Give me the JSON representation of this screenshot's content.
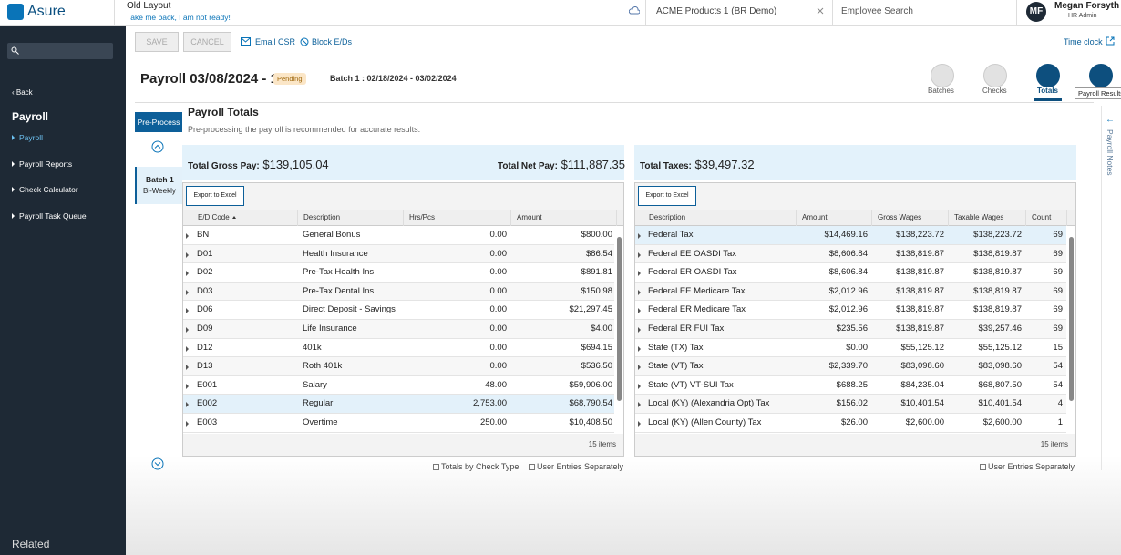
{
  "topbar": {
    "brand": "Asure",
    "old_layout": "Old Layout",
    "take_back": "Take me back, I am not ready!",
    "company": "ACME Products 1 (BR Demo)",
    "search": "Employee Search",
    "initials": "MF",
    "user": "Megan Forsyth",
    "role": "HR Admin"
  },
  "sidebar": {
    "back": "Back",
    "section": "Payroll",
    "items": [
      "Payroll",
      "Payroll Reports",
      "Check Calculator",
      "Payroll Task Queue"
    ],
    "related": "Related"
  },
  "toolbar": {
    "save": "SAVE",
    "cancel": "CANCEL",
    "email": "Email CSR",
    "block": "Block E/Ds",
    "timeclock": "Time clock"
  },
  "header": {
    "title": "Payroll 03/08/2024 - 1",
    "status": "Pending",
    "batch": "Batch 1 : 02/18/2024 - 03/02/2024",
    "tabs": [
      "Batches",
      "Checks",
      "Totals"
    ],
    "tooltip": "Payroll Results"
  },
  "left": {
    "preprocess": "Pre-Process",
    "batch": "Batch 1",
    "frequency": "Bi-Weekly"
  },
  "totals": {
    "title": "Payroll Totals",
    "note": "Pre-processing the payroll is recommended for accurate results.",
    "gross_label": "Total Gross Pay:",
    "gross": "$139,105.04",
    "net_label": "Total Net Pay:",
    "net": "$111,887.35",
    "tax_label": "Total Taxes:",
    "tax": "$39,497.32"
  },
  "ed_table": {
    "export": "Export to Excel",
    "columns": [
      "E/D Code",
      "Description",
      "Hrs/Pcs",
      "Amount"
    ],
    "rows": [
      [
        "BN",
        "General Bonus",
        "0.00",
        "$800.00"
      ],
      [
        "D01",
        "Health Insurance",
        "0.00",
        "$86.54"
      ],
      [
        "D02",
        "Pre-Tax Health Ins",
        "0.00",
        "$891.81"
      ],
      [
        "D03",
        "Pre-Tax Dental Ins",
        "0.00",
        "$150.98"
      ],
      [
        "D06",
        "Direct Deposit - Savings",
        "0.00",
        "$21,297.45"
      ],
      [
        "D09",
        "Life Insurance",
        "0.00",
        "$4.00"
      ],
      [
        "D12",
        "401k",
        "0.00",
        "$694.15"
      ],
      [
        "D13",
        "Roth 401k",
        "0.00",
        "$536.50"
      ],
      [
        "E001",
        "Salary",
        "48.00",
        "$59,906.00"
      ],
      [
        "E002",
        "Regular",
        "2,753.00",
        "$68,790.54"
      ],
      [
        "E003",
        "Overtime",
        "250.00",
        "$10,408.50"
      ]
    ],
    "footer": "15 items",
    "options": [
      "Totals by Check Type",
      "User Entries Separately"
    ]
  },
  "tax_table": {
    "export": "Export to Excel",
    "columns": [
      "Description",
      "Amount",
      "Gross Wages",
      "Taxable Wages",
      "Count"
    ],
    "rows": [
      [
        "Federal Tax",
        "$14,469.16",
        "$138,223.72",
        "$138,223.72",
        "69"
      ],
      [
        "Federal EE OASDI Tax",
        "$8,606.84",
        "$138,819.87",
        "$138,819.87",
        "69"
      ],
      [
        "Federal ER OASDI Tax",
        "$8,606.84",
        "$138,819.87",
        "$138,819.87",
        "69"
      ],
      [
        "Federal EE Medicare Tax",
        "$2,012.96",
        "$138,819.87",
        "$138,819.87",
        "69"
      ],
      [
        "Federal ER Medicare Tax",
        "$2,012.96",
        "$138,819.87",
        "$138,819.87",
        "69"
      ],
      [
        "Federal ER FUI Tax",
        "$235.56",
        "$138,819.87",
        "$39,257.46",
        "69"
      ],
      [
        "State (TX) Tax",
        "$0.00",
        "$55,125.12",
        "$55,125.12",
        "15"
      ],
      [
        "State (VT) Tax",
        "$2,339.70",
        "$83,098.60",
        "$83,098.60",
        "54"
      ],
      [
        "State (VT) VT-SUI Tax",
        "$688.25",
        "$84,235.04",
        "$68,807.50",
        "54"
      ],
      [
        "Local (KY) (Alexandria Opt) Tax",
        "$156.02",
        "$10,401.54",
        "$10,401.54",
        "4"
      ],
      [
        "Local (KY) (Allen County) Tax",
        "$26.00",
        "$2,600.00",
        "$2,600.00",
        "1"
      ]
    ],
    "footer": "15 items",
    "options": [
      "User Entries Separately"
    ]
  },
  "notes": "Payroll Notes"
}
